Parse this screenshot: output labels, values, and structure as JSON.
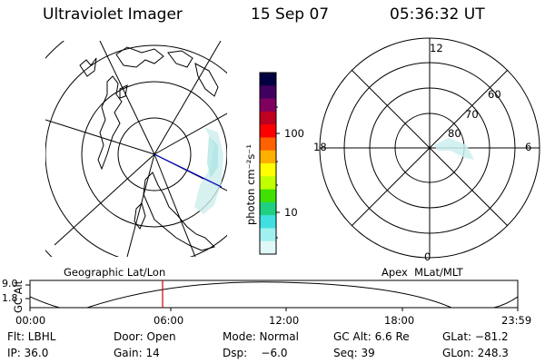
{
  "header": {
    "title": "Ultraviolet Imager",
    "date": "15 Sep 07",
    "time": "05:36:32 UT"
  },
  "colorbar": {
    "unit_label": "photon cm⁻²s⁻¹",
    "ticks": [
      "100",
      "10"
    ],
    "colors": [
      "#000040",
      "#400060",
      "#800060",
      "#c00020",
      "#ff0000",
      "#ff6000",
      "#ffb000",
      "#ffff00",
      "#c0ff00",
      "#40e000",
      "#20d080",
      "#40e0e0",
      "#a0f0f0",
      "#e0f8f8"
    ]
  },
  "geo_panel": {
    "label": "Geographic Lat/Lon"
  },
  "apex_panel": {
    "label": "Apex  MLat/MLT",
    "mlt_labels": [
      "12",
      "18",
      "6",
      "0"
    ],
    "lat_labels": [
      "60",
      "70",
      "80"
    ]
  },
  "altitude_plot": {
    "ylabel": "GC Alt",
    "yticks": [
      "9.0",
      "1.8"
    ],
    "xticks": [
      "00:00",
      "06:00",
      "12:00",
      "18:00",
      "23:59"
    ],
    "marker_time": "05:36"
  },
  "info": {
    "flt": "Flt: LBHL",
    "door": "Door: Open",
    "mode": "Mode: Normal",
    "gc_alt": "GC Alt: 6.6 Re",
    "glat": "GLat: −81.2",
    "ip": "IP: 36.0",
    "gain": "Gain: 14",
    "dsp": "Dsp:    −6.0",
    "seq": "Seq: 39",
    "glon": "GLon: 248.3"
  }
}
